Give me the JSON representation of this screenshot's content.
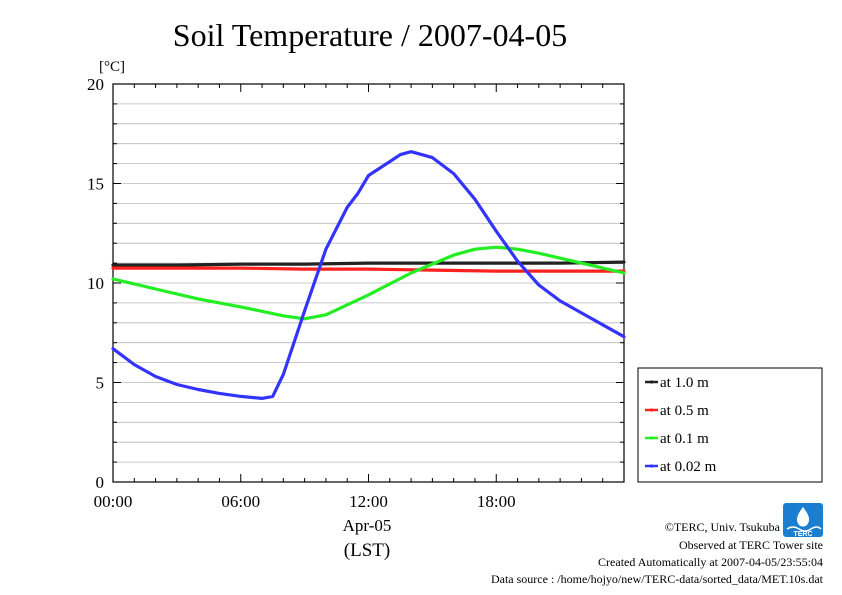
{
  "chart_data": {
    "type": "line",
    "title": "Soil Temperature / 2007-04-05",
    "ylabel": "[°C]",
    "ylim": [
      0,
      20
    ],
    "yticks": [
      0,
      5,
      10,
      15,
      20
    ],
    "xlim": [
      0,
      24
    ],
    "xticks": [
      {
        "hour": 0,
        "label": "00:00"
      },
      {
        "hour": 6,
        "label": "06:00"
      },
      {
        "hour": 12,
        "label": "12:00"
      },
      {
        "hour": 18,
        "label": "18:00"
      }
    ],
    "xdate": "Apr-05",
    "xunit": "(LST)",
    "grid": true,
    "legend_position": "right",
    "series": [
      {
        "name": "at 1.0 m",
        "color": "#222222",
        "x": [
          0,
          3,
          6,
          9,
          12,
          15,
          18,
          21,
          24
        ],
        "y": [
          10.9,
          10.9,
          10.95,
          10.95,
          11.0,
          11.0,
          11.0,
          11.0,
          11.05
        ]
      },
      {
        "name": "at 0.5 m",
        "color": "#ff2020",
        "x": [
          0,
          3,
          6,
          9,
          12,
          15,
          18,
          21,
          24
        ],
        "y": [
          10.75,
          10.75,
          10.75,
          10.7,
          10.7,
          10.65,
          10.6,
          10.6,
          10.6
        ]
      },
      {
        "name": "at 0.1 m",
        "color": "#22ee22",
        "x": [
          0,
          2,
          4,
          6,
          8,
          9,
          10,
          12,
          14,
          16,
          17,
          18,
          19,
          20,
          22,
          24
        ],
        "y": [
          10.2,
          9.7,
          9.2,
          8.8,
          8.35,
          8.2,
          8.4,
          9.4,
          10.5,
          11.4,
          11.7,
          11.8,
          11.7,
          11.5,
          11.0,
          10.5
        ]
      },
      {
        "name": "at 0.02 m",
        "color": "#3333ff",
        "x": [
          0,
          1,
          2,
          3,
          4,
          5,
          6,
          7,
          7.5,
          8,
          9,
          10,
          11,
          11.5,
          12,
          13,
          13.5,
          14,
          14.5,
          15,
          16,
          17,
          18,
          19,
          20,
          21,
          22,
          23,
          24
        ],
        "y": [
          6.7,
          5.9,
          5.3,
          4.9,
          4.65,
          4.45,
          4.3,
          4.2,
          4.3,
          5.4,
          8.6,
          11.7,
          13.8,
          14.5,
          15.4,
          16.1,
          16.45,
          16.6,
          16.45,
          16.3,
          15.5,
          14.2,
          12.6,
          11.1,
          9.9,
          9.1,
          8.5,
          7.9,
          7.3
        ]
      }
    ]
  },
  "credits": {
    "line1": "©TERC, Univ. Tsukuba",
    "line2": "Observed at TERC Tower site",
    "line3": "Created Automatically at 2007-04-05/23:55:04",
    "line4": "Data source : /home/hojyo/new/TERC-data/sorted_data/MET.10s.dat"
  },
  "logo": {
    "text": "TERC",
    "color": "#1a7fd0"
  }
}
